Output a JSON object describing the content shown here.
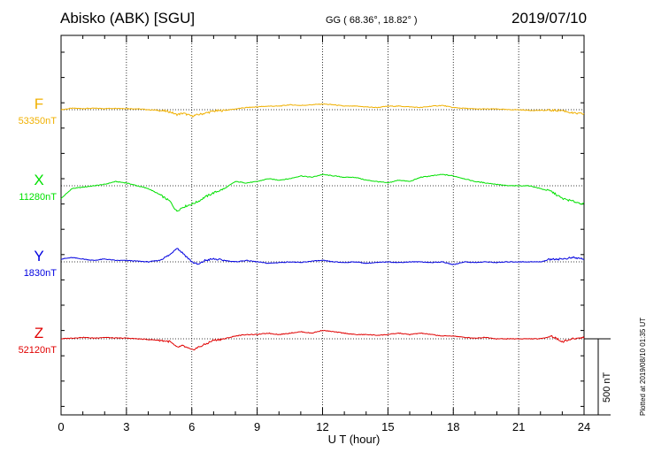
{
  "header": {
    "station": "Abisko (ABK)  [SGU]",
    "coords": "GG ( 68.36°,  18.82° )",
    "date": "2019/07/10"
  },
  "footer": {
    "xlabel": "U T (hour)",
    "scale_label": "500 nT",
    "plotted": "Plotted at 2019/08/10 01:35 UT"
  },
  "chart_data": {
    "type": "line",
    "xlabel": "U T (hour)",
    "xlim": [
      0,
      24
    ],
    "x_ticks": [
      "0",
      "3",
      "6",
      "9",
      "12",
      "15",
      "18",
      "21",
      "24"
    ],
    "grid": "dotted vertical every 3 hours; dotted baseline per component",
    "scale_bar": "500 nT",
    "x": [
      0,
      0.5,
      1,
      1.5,
      2,
      2.5,
      3,
      3.5,
      4,
      4.5,
      5,
      5.3,
      5.6,
      6,
      6.3,
      6.6,
      7,
      7.5,
      8,
      8.5,
      9,
      9.5,
      10,
      10.5,
      11,
      11.5,
      12,
      12.5,
      13,
      13.5,
      14,
      14.5,
      15,
      15.5,
      16,
      16.5,
      17,
      17.5,
      18,
      18.5,
      19,
      19.5,
      20,
      20.5,
      21,
      21.5,
      22,
      22.5,
      23,
      23.5,
      24
    ],
    "series": [
      {
        "name": "F",
        "baseline": "53350nT",
        "color": "#f0b000",
        "values": [
          0,
          10,
          8,
          10,
          8,
          10,
          8,
          6,
          0,
          -5,
          -15,
          -35,
          -25,
          -45,
          -35,
          -25,
          -10,
          -5,
          5,
          15,
          20,
          25,
          25,
          35,
          30,
          35,
          40,
          35,
          25,
          25,
          20,
          15,
          25,
          25,
          20,
          15,
          25,
          30,
          15,
          10,
          5,
          5,
          5,
          0,
          0,
          -5,
          -5,
          -5,
          -5,
          -25,
          -30
        ]
      },
      {
        "name": "X",
        "baseline": "11280nT",
        "color": "#00e000",
        "values": [
          -90,
          -20,
          -10,
          0,
          10,
          30,
          20,
          0,
          -20,
          -60,
          -110,
          -180,
          -150,
          -130,
          -110,
          -80,
          -50,
          -20,
          30,
          20,
          30,
          50,
          40,
          50,
          70,
          60,
          80,
          70,
          60,
          60,
          40,
          30,
          20,
          40,
          30,
          60,
          70,
          80,
          70,
          50,
          30,
          20,
          10,
          0,
          0,
          0,
          -20,
          -40,
          -90,
          -110,
          -130
        ]
      },
      {
        "name": "Y",
        "baseline": "1830nT",
        "color": "#0000e0",
        "values": [
          20,
          30,
          20,
          10,
          20,
          10,
          10,
          5,
          0,
          10,
          50,
          100,
          60,
          0,
          -20,
          10,
          20,
          10,
          0,
          10,
          0,
          -10,
          -5,
          0,
          -5,
          5,
          10,
          0,
          -5,
          0,
          -10,
          -5,
          0,
          -5,
          0,
          0,
          -5,
          0,
          -20,
          0,
          -5,
          0,
          -5,
          0,
          0,
          0,
          0,
          20,
          20,
          30,
          20
        ]
      },
      {
        "name": "Z",
        "baseline": "52120nT",
        "color": "#e00000",
        "values": [
          0,
          5,
          10,
          5,
          10,
          5,
          5,
          0,
          -5,
          -10,
          -20,
          -60,
          -50,
          -80,
          -60,
          -40,
          -10,
          0,
          20,
          30,
          30,
          40,
          30,
          40,
          50,
          40,
          60,
          50,
          40,
          30,
          30,
          25,
          30,
          40,
          30,
          40,
          30,
          20,
          20,
          10,
          5,
          10,
          0,
          0,
          0,
          0,
          0,
          20,
          -20,
          0,
          10
        ]
      }
    ]
  }
}
